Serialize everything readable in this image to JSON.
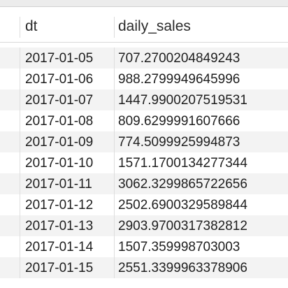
{
  "table": {
    "columns": [
      "dt",
      "daily_sales"
    ],
    "rows": [
      {
        "dt": "2017-01-05",
        "daily_sales": "707.2700204849243"
      },
      {
        "dt": "2017-01-06",
        "daily_sales": "988.2799949645996"
      },
      {
        "dt": "2017-01-07",
        "daily_sales": "1447.9900207519531"
      },
      {
        "dt": "2017-01-08",
        "daily_sales": "809.6299991607666"
      },
      {
        "dt": "2017-01-09",
        "daily_sales": "774.5099925994873"
      },
      {
        "dt": "2017-01-10",
        "daily_sales": "1571.1700134277344"
      },
      {
        "dt": "2017-01-11",
        "daily_sales": "3062.3299865722656"
      },
      {
        "dt": "2017-01-12",
        "daily_sales": "2502.6900329589844"
      },
      {
        "dt": "2017-01-13",
        "daily_sales": "2903.9700317382812"
      },
      {
        "dt": "2017-01-14",
        "daily_sales": "1507.359998703003"
      },
      {
        "dt": "2017-01-15",
        "daily_sales": "2551.3399963378906"
      }
    ]
  }
}
